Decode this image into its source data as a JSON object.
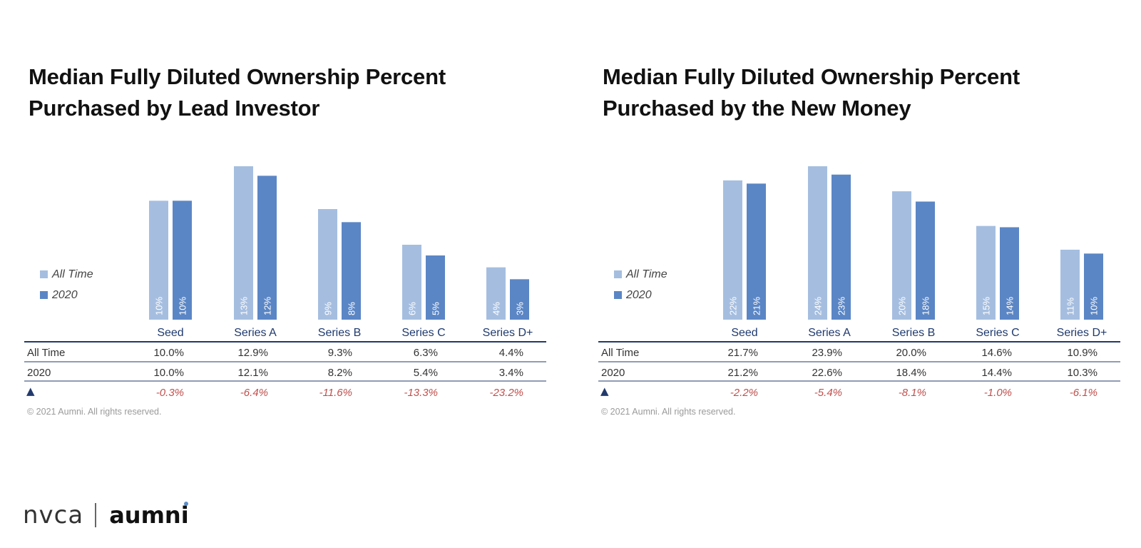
{
  "colors": {
    "all_time": "#a5bee0",
    "y2020": "#5b86c5",
    "axis": "#223a6b",
    "category_label": "#1f3a6e",
    "delta": "#c0504d",
    "bar_label": "#ffffff"
  },
  "legend": {
    "all_time_label": "All Time",
    "y2020_label": "2020"
  },
  "footer": {
    "copyright": "© 2021 Aumni. All rights reserved."
  },
  "logos": {
    "nvca": "nvca",
    "aumni": "aumni"
  },
  "chart_data": [
    {
      "type": "bar",
      "title_lines": [
        "Median Fully Diluted Ownership Percent",
        "Purchased by Lead Investor"
      ],
      "categories": [
        "Seed",
        "Series A",
        "Series B",
        "Series C",
        "Series D+"
      ],
      "series": [
        {
          "name": "All Time",
          "values": [
            10.0,
            12.9,
            9.3,
            6.3,
            4.4
          ],
          "bar_labels": [
            "10%",
            "13%",
            "9%",
            "6%",
            "4%"
          ]
        },
        {
          "name": "2020",
          "values": [
            10.0,
            12.1,
            8.2,
            5.4,
            3.4
          ],
          "bar_labels": [
            "10%",
            "12%",
            "8%",
            "5%",
            "3%"
          ]
        }
      ],
      "table": {
        "rows": [
          {
            "label": "All Time",
            "values": [
              "10.0%",
              "12.9%",
              "9.3%",
              "6.3%",
              "4.4%"
            ]
          },
          {
            "label": "2020",
            "values": [
              "10.0%",
              "12.1%",
              "8.2%",
              "5.4%",
              "3.4%"
            ]
          }
        ],
        "delta_symbol": "▲",
        "delta_values": [
          "-0.3%",
          "-6.4%",
          "-11.6%",
          "-13.3%",
          "-23.2%"
        ]
      }
    },
    {
      "type": "bar",
      "title_lines": [
        "Median Fully Diluted Ownership Percent",
        "Purchased by the New Money"
      ],
      "categories": [
        "Seed",
        "Series A",
        "Series B",
        "Series C",
        "Series D+"
      ],
      "series": [
        {
          "name": "All Time",
          "values": [
            21.7,
            23.9,
            20.0,
            14.6,
            10.9
          ],
          "bar_labels": [
            "22%",
            "24%",
            "20%",
            "15%",
            "11%"
          ]
        },
        {
          "name": "2020",
          "values": [
            21.2,
            22.6,
            18.4,
            14.4,
            10.3
          ],
          "bar_labels": [
            "21%",
            "23%",
            "18%",
            "14%",
            "10%"
          ]
        }
      ],
      "table": {
        "rows": [
          {
            "label": "All Time",
            "values": [
              "21.7%",
              "23.9%",
              "20.0%",
              "14.6%",
              "10.9%"
            ]
          },
          {
            "label": "2020",
            "values": [
              "21.2%",
              "22.6%",
              "18.4%",
              "14.4%",
              "10.3%"
            ]
          }
        ],
        "delta_symbol": "▲",
        "delta_values": [
          "-2.2%",
          "-5.4%",
          "-8.1%",
          "-1.0%",
          "-6.1%"
        ]
      }
    }
  ]
}
